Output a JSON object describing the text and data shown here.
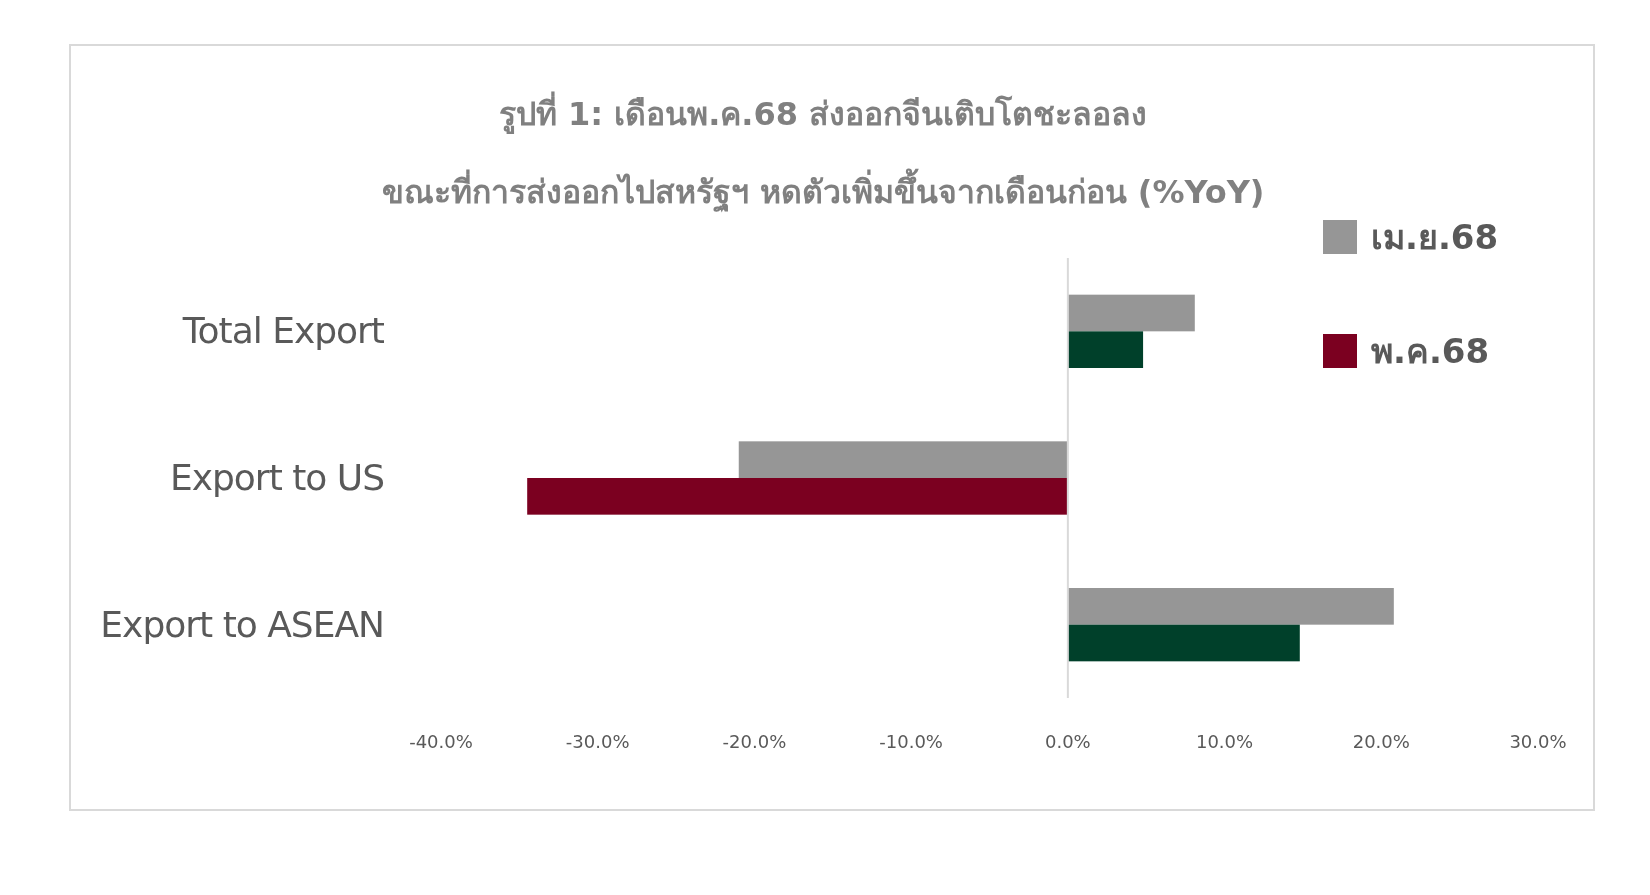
{
  "chart_data": {
    "type": "bar",
    "orientation": "horizontal",
    "title": "รูปที่ 1: เดือนพ.ค.68 ส่งออกจีนเติบโตชะลอลง",
    "subtitle": "ขณะที่การส่งออกไปสหรัฐฯ หดตัวเพิ่มขึ้นจากเดือนก่อน (%YoY)",
    "categories": [
      "Total Export",
      "Export to US",
      "Export to ASEAN"
    ],
    "series": [
      {
        "name": "เม.ย.68",
        "color": "#969696",
        "values": [
          8.1,
          -21.0,
          20.8
        ]
      },
      {
        "name": "พ.ค.68",
        "color": "#7b0020",
        "colors": [
          "#00402a",
          "#7b0020",
          "#00402a"
        ],
        "values": [
          4.8,
          -34.5,
          14.8
        ]
      }
    ],
    "xlim": [
      -40,
      30
    ],
    "xticks": [
      {
        "value": -40,
        "label": "-40.0%"
      },
      {
        "value": -30,
        "label": "-30.0%"
      },
      {
        "value": -20,
        "label": "-20.0%"
      },
      {
        "value": -10,
        "label": "-10.0%"
      },
      {
        "value": 0,
        "label": "0.0%"
      },
      {
        "value": 10,
        "label": "10.0%"
      },
      {
        "value": 20,
        "label": "20.0%"
      },
      {
        "value": 30,
        "label": "30.0%"
      }
    ],
    "legend": "top right"
  }
}
